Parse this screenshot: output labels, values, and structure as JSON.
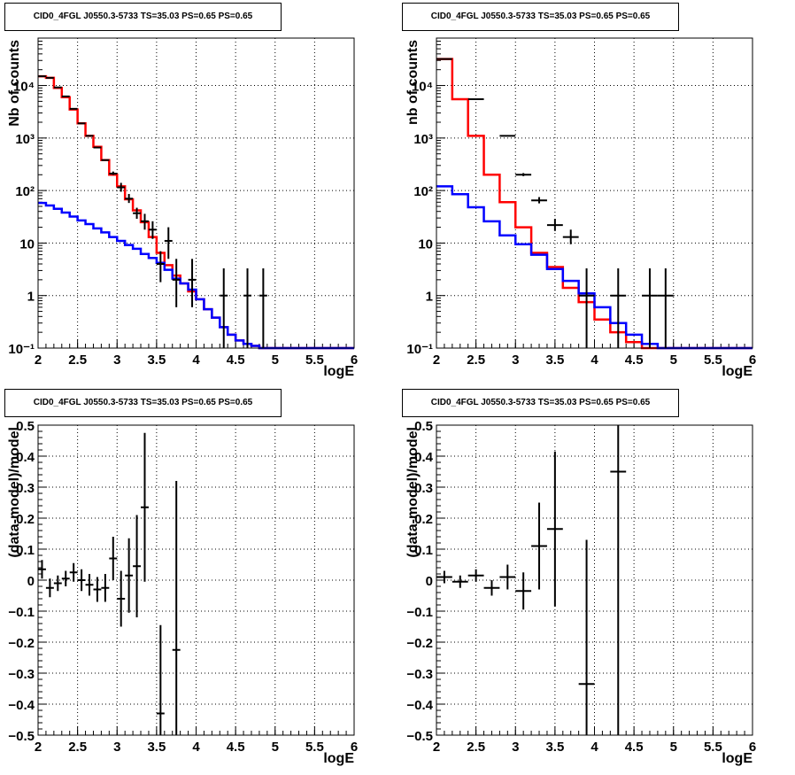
{
  "chart_data": [
    {
      "type": "line",
      "title": "CID0_4FGL J0550.3-5733 TS=35.03 PS=0.65 PS=0.65",
      "xlabel": "logE",
      "ylabel": "Nb of counts",
      "xlim": [
        2,
        6
      ],
      "ylim": [
        0.1,
        80000
      ],
      "yscale": "log",
      "grid": true,
      "xticks": [
        "2",
        "2.5",
        "3",
        "3.5",
        "4",
        "4.5",
        "5",
        "5.5",
        "6"
      ],
      "yticks": [
        "10⁻¹",
        "1",
        "10",
        "10²",
        "10³",
        "10⁴"
      ],
      "bin_edges": [
        2,
        2.1,
        2.2,
        2.3,
        2.4,
        2.5,
        2.6,
        2.7,
        2.8,
        2.9,
        3,
        3.1,
        3.2,
        3.3,
        3.4,
        3.5,
        3.6,
        3.7,
        3.8,
        3.9,
        4,
        4.1,
        4.2,
        4.3,
        4.4,
        4.5,
        4.6,
        4.7,
        4.8,
        4.9,
        5,
        5.1,
        5.2,
        5.3,
        5.4,
        5.5,
        5.6,
        5.7,
        5.8,
        5.9,
        6
      ],
      "series": [
        {
          "kind": "hist",
          "color": "#ff0000",
          "values": [
            15000,
            14000,
            9000,
            6000,
            3500,
            1900,
            1100,
            680,
            380,
            200,
            120,
            68,
            42,
            25,
            13,
            6.5,
            3.8,
            2.4,
            1.7,
            1.2,
            0.85,
            0.55,
            0.38,
            0.25,
            0.18,
            0.14,
            0.12,
            0.11,
            0.1,
            0.1,
            0.1,
            0.1,
            0.1,
            0.1,
            0.1,
            0.1,
            0.1,
            0.1,
            0.1,
            0.1
          ]
        },
        {
          "kind": "hist",
          "color": "#0000ff",
          "values": [
            58,
            52,
            45,
            38,
            32,
            27,
            23,
            19,
            16,
            13,
            11,
            9.2,
            7.8,
            6.2,
            5.2,
            4.2,
            3.1,
            2.1,
            1.7,
            1.3,
            0.85,
            0.55,
            0.38,
            0.25,
            0.18,
            0.14,
            0.12,
            0.11,
            0.1,
            0.1,
            0.1,
            0.1,
            0.1,
            0.1,
            0.1,
            0.1,
            0.1,
            0.1,
            0.1,
            0.1
          ]
        },
        {
          "kind": "points",
          "color": "#000000",
          "x": [
            2.05,
            2.15,
            2.25,
            2.35,
            2.45,
            2.55,
            2.65,
            2.75,
            2.85,
            2.95,
            3.05,
            3.15,
            3.25,
            3.35,
            3.45,
            3.55,
            3.65,
            3.75,
            3.95,
            4.35,
            4.65,
            4.85
          ],
          "y": [
            15000,
            14000,
            9200,
            6200,
            3600,
            1900,
            1100,
            660,
            380,
            210,
            115,
            70,
            37,
            26,
            18,
            4,
            11,
            2,
            2,
            1,
            1,
            1
          ],
          "err_low": [
            0,
            0,
            0,
            0,
            0,
            0,
            0,
            0,
            0,
            12,
            20,
            12,
            8,
            8,
            6,
            2.2,
            6,
            1.4,
            1.4,
            0.99,
            0.99,
            0.99
          ],
          "err_high": [
            0,
            0,
            0,
            0,
            0,
            0,
            0,
            0,
            0,
            20,
            25,
            16,
            10,
            10,
            8,
            3,
            9,
            3,
            3,
            2.3,
            2.3,
            2.3
          ],
          "xerr": 0.05
        }
      ]
    },
    {
      "type": "line",
      "title": "CID0_4FGL J0550.3-5733 TS=35.03 PS=0.65 PS=0.65",
      "xlabel": "logE",
      "ylabel": "nb of counts",
      "xlim": [
        2,
        6
      ],
      "ylim": [
        0.1,
        80000
      ],
      "yscale": "log",
      "grid": true,
      "xticks": [
        "2",
        "2.5",
        "3",
        "3.5",
        "4",
        "4.5",
        "5",
        "5.5",
        "6"
      ],
      "yticks": [
        "10⁻¹",
        "1",
        "10",
        "10²",
        "10³",
        "10⁴"
      ],
      "bin_edges": [
        2,
        2.2,
        2.4,
        2.6,
        2.8,
        3,
        3.2,
        3.4,
        3.6,
        3.8,
        4,
        4.2,
        4.4,
        4.6,
        4.8,
        5,
        5.2,
        5.4,
        5.6,
        5.8,
        6
      ],
      "series": [
        {
          "kind": "hist",
          "color": "#ff0000",
          "values": [
            32000,
            5500,
            1100,
            200,
            60,
            20,
            6.5,
            3.5,
            1.4,
            0.75,
            0.35,
            0.2,
            0.13,
            0.1,
            0.1,
            0.1,
            0.1,
            0.1,
            0.1,
            0.1
          ]
        },
        {
          "kind": "hist",
          "color": "#0000ff",
          "values": [
            120,
            85,
            48,
            26,
            14,
            9.5,
            6,
            3.2,
            1.9,
            1.1,
            0.6,
            0.3,
            0.18,
            0.12,
            0.1,
            0.1,
            0.1,
            0.1,
            0.1,
            0.1
          ]
        },
        {
          "kind": "points",
          "color": "#000000",
          "x": [
            2.1,
            2.5,
            2.9,
            3.1,
            3.3,
            3.5,
            3.7,
            3.9,
            4.3,
            4.7,
            4.9
          ],
          "y": [
            32000,
            5500,
            1100,
            200,
            65,
            22,
            13,
            1,
            1,
            1,
            1
          ],
          "err_low": [
            0,
            0,
            0,
            12,
            8,
            5,
            3.5,
            0.99,
            0.99,
            0.99,
            0.99
          ],
          "err_high": [
            0,
            0,
            0,
            15,
            10,
            7,
            5,
            2.3,
            2.3,
            2.3,
            2.3
          ],
          "xerr": 0.1
        }
      ]
    },
    {
      "type": "scatter",
      "title": "CID0_4FGL J0550.3-5733 TS=35.03 PS=0.65 PS=0.65",
      "xlabel": "logE",
      "ylabel": "(data-model)/model",
      "xlim": [
        2,
        6
      ],
      "ylim": [
        -0.5,
        0.5
      ],
      "grid": true,
      "xticks": [
        "2",
        "2.5",
        "3",
        "3.5",
        "4",
        "4.5",
        "5",
        "5.5",
        "6"
      ],
      "yticks": [
        "−0.5",
        "−0.4",
        "−0.3",
        "−0.2",
        "−0.1",
        "0",
        "0.1",
        "0.2",
        "0.3",
        "0.4",
        "0.5"
      ],
      "series": [
        {
          "kind": "points",
          "color": "#000000",
          "x": [
            2.05,
            2.15,
            2.25,
            2.35,
            2.45,
            2.55,
            2.65,
            2.75,
            2.85,
            2.95,
            3.05,
            3.15,
            3.25,
            3.35,
            3.55,
            3.75
          ],
          "y": [
            0.035,
            -0.025,
            -0.01,
            0.005,
            0.025,
            0.0,
            -0.015,
            -0.03,
            -0.025,
            0.07,
            -0.06,
            0.015,
            0.045,
            0.235,
            -0.43,
            -0.225
          ],
          "err": [
            0.03,
            0.03,
            0.025,
            0.025,
            0.03,
            0.035,
            0.035,
            0.04,
            0.045,
            0.07,
            0.09,
            0.12,
            0.165,
            0.24,
            0.285,
            0.545
          ],
          "xerr": 0.05
        }
      ]
    },
    {
      "type": "scatter",
      "title": "CID0_4FGL J0550.3-5733 TS=35.03 PS=0.65 PS=0.65",
      "xlabel": "logE",
      "ylabel": "(data-model)/model",
      "xlim": [
        2,
        6
      ],
      "ylim": [
        -0.5,
        0.5
      ],
      "grid": true,
      "xticks": [
        "2",
        "2.5",
        "3",
        "3.5",
        "4",
        "4.5",
        "5",
        "5.5",
        "6"
      ],
      "yticks": [
        "−0.5",
        "−0.4",
        "−0.3",
        "−0.2",
        "−0.1",
        "0",
        "0.1",
        "0.2",
        "0.3",
        "0.4",
        "0.5"
      ],
      "series": [
        {
          "kind": "points",
          "color": "#000000",
          "x": [
            2.1,
            2.3,
            2.5,
            2.7,
            2.9,
            3.1,
            3.3,
            3.5,
            3.9,
            4.3
          ],
          "y": [
            0.01,
            -0.005,
            0.015,
            -0.025,
            0.01,
            -0.035,
            0.11,
            0.165,
            -0.335,
            0.35
          ],
          "err": [
            0.02,
            0.02,
            0.02,
            0.025,
            0.04,
            0.06,
            0.14,
            0.25,
            0.465,
            0.85
          ],
          "xerr": 0.1
        }
      ]
    }
  ]
}
